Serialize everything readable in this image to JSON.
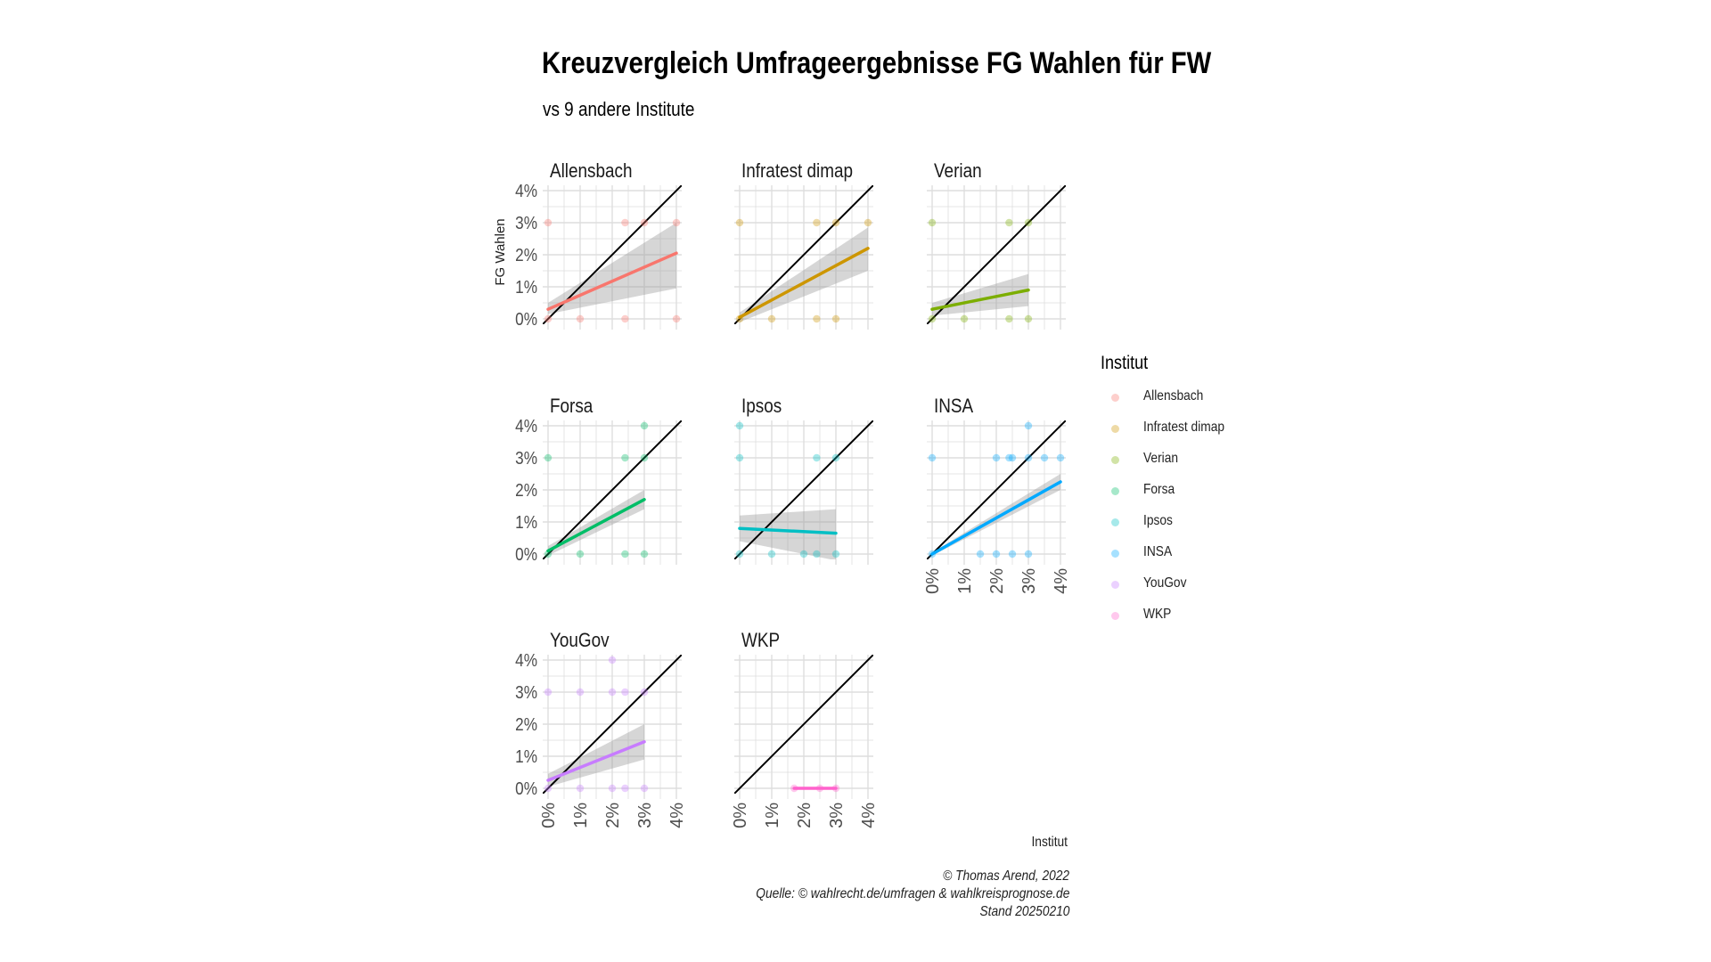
{
  "title": "Kreuzvergleich Umfrageergebnisse FG Wahlen für FW",
  "subtitle": "vs 9 andere Institute",
  "caption": {
    "line1": "© Thomas Arend, 2022",
    "line2": "Quelle: © wahlrecht.de/umfragen & wahlkreisprognose.de",
    "line3": "Stand 20250210"
  },
  "legend": {
    "title": "Institut",
    "items": [
      {
        "label": "Allensbach",
        "color": "#F8766D"
      },
      {
        "label": "Infratest dimap",
        "color": "#CD9600"
      },
      {
        "label": "Verian",
        "color": "#7CAE00"
      },
      {
        "label": "Forsa",
        "color": "#00BE67"
      },
      {
        "label": "Ipsos",
        "color": "#00BFC4"
      },
      {
        "label": "INSA",
        "color": "#00A9FF"
      },
      {
        "label": "YouGov",
        "color": "#C77CFF"
      },
      {
        "label": "WKP",
        "color": "#FF61CC"
      }
    ]
  },
  "chart_data": {
    "type": "scatter",
    "title": "Kreuzvergleich Umfrageergebnisse FG Wahlen für FW",
    "subtitle": "vs 9 andere Institute",
    "xlabel": "Institut",
    "ylabel": "FG Wahlen",
    "xlim": [
      0,
      4
    ],
    "ylim": [
      0,
      4
    ],
    "ticks": [
      "0%",
      "1%",
      "2%",
      "3%",
      "4%"
    ],
    "grid": true,
    "reference_line": "y = x",
    "legend_position": "right",
    "panels": [
      {
        "name": "Allensbach",
        "color": "#F8766D",
        "points": [
          [
            0,
            3
          ],
          [
            0,
            0
          ],
          [
            1,
            0
          ],
          [
            2.4,
            3
          ],
          [
            2.4,
            0
          ],
          [
            3,
            3
          ],
          [
            4,
            3
          ],
          [
            4,
            0
          ]
        ],
        "trend": [
          [
            0,
            0.3
          ],
          [
            4,
            2.05
          ]
        ],
        "band_low": [
          0.15,
          0.95
        ],
        "band_high": [
          0.5,
          3.0
        ]
      },
      {
        "name": "Infratest dimap",
        "color": "#CD9600",
        "points": [
          [
            0,
            3
          ],
          [
            0,
            0
          ],
          [
            1,
            0
          ],
          [
            2.4,
            3
          ],
          [
            2.4,
            0
          ],
          [
            3,
            3
          ],
          [
            3,
            0
          ],
          [
            4,
            3
          ]
        ],
        "trend": [
          [
            0,
            0.05
          ],
          [
            4,
            2.2
          ]
        ],
        "band_low": [
          -0.1,
          1.5
        ],
        "band_high": [
          0.2,
          2.85
        ]
      },
      {
        "name": "Verian",
        "color": "#7CAE00",
        "points": [
          [
            0,
            3
          ],
          [
            0,
            0
          ],
          [
            1,
            0
          ],
          [
            2.4,
            3
          ],
          [
            2.4,
            0
          ],
          [
            3,
            3
          ],
          [
            3,
            0
          ]
        ],
        "trend": [
          [
            0,
            0.3
          ],
          [
            3,
            0.9
          ]
        ],
        "band_low": [
          0.1,
          0.4
        ],
        "band_high": [
          0.5,
          1.4
        ]
      },
      {
        "name": "Forsa",
        "color": "#00BE67",
        "points": [
          [
            0,
            3
          ],
          [
            0,
            0
          ],
          [
            1,
            0
          ],
          [
            2.4,
            3
          ],
          [
            2.4,
            0
          ],
          [
            3,
            4
          ],
          [
            3,
            3
          ],
          [
            3,
            0
          ]
        ],
        "trend": [
          [
            0,
            0.1
          ],
          [
            3,
            1.7
          ]
        ],
        "band_low": [
          -0.05,
          1.4
        ],
        "band_high": [
          0.25,
          2.0
        ]
      },
      {
        "name": "Ipsos",
        "color": "#00BFC4",
        "points": [
          [
            0,
            4
          ],
          [
            0,
            3
          ],
          [
            0,
            0
          ],
          [
            1,
            0
          ],
          [
            2,
            0
          ],
          [
            2.4,
            3
          ],
          [
            2.4,
            0
          ],
          [
            3,
            3
          ],
          [
            3,
            0
          ]
        ],
        "trend": [
          [
            0,
            0.8
          ],
          [
            3,
            0.65
          ]
        ],
        "band_low": [
          0.4,
          -0.2
        ],
        "band_high": [
          1.2,
          1.4
        ]
      },
      {
        "name": "INSA",
        "color": "#00A9FF",
        "points": [
          [
            0,
            3
          ],
          [
            0,
            0
          ],
          [
            1.5,
            0
          ],
          [
            2,
            3
          ],
          [
            2,
            0
          ],
          [
            2.4,
            3
          ],
          [
            2.5,
            3
          ],
          [
            2.5,
            0
          ],
          [
            3,
            4
          ],
          [
            3,
            3
          ],
          [
            3,
            0
          ],
          [
            3.5,
            3
          ],
          [
            4,
            3
          ]
        ],
        "trend": [
          [
            0,
            0.0
          ],
          [
            4,
            2.25
          ]
        ],
        "band_low": [
          -0.05,
          2.0
        ],
        "band_high": [
          0.05,
          2.5
        ]
      },
      {
        "name": "YouGov",
        "color": "#C77CFF",
        "points": [
          [
            0,
            3
          ],
          [
            0,
            0
          ],
          [
            1,
            3
          ],
          [
            1,
            0
          ],
          [
            2,
            4
          ],
          [
            2,
            3
          ],
          [
            2,
            0
          ],
          [
            2.4,
            3
          ],
          [
            2.4,
            0
          ],
          [
            3,
            3
          ],
          [
            3,
            0
          ]
        ],
        "trend": [
          [
            0,
            0.25
          ],
          [
            3,
            1.45
          ]
        ],
        "band_low": [
          0.05,
          0.9
        ],
        "band_high": [
          0.45,
          2.0
        ]
      },
      {
        "name": "WKP",
        "color": "#FF61CC",
        "points": [
          [
            1.7,
            0
          ],
          [
            2.5,
            0
          ],
          [
            3,
            0
          ]
        ],
        "trend": [
          [
            1.7,
            0
          ],
          [
            3,
            0
          ]
        ],
        "band_low": [
          0,
          0
        ],
        "band_high": [
          0,
          0
        ]
      }
    ]
  }
}
